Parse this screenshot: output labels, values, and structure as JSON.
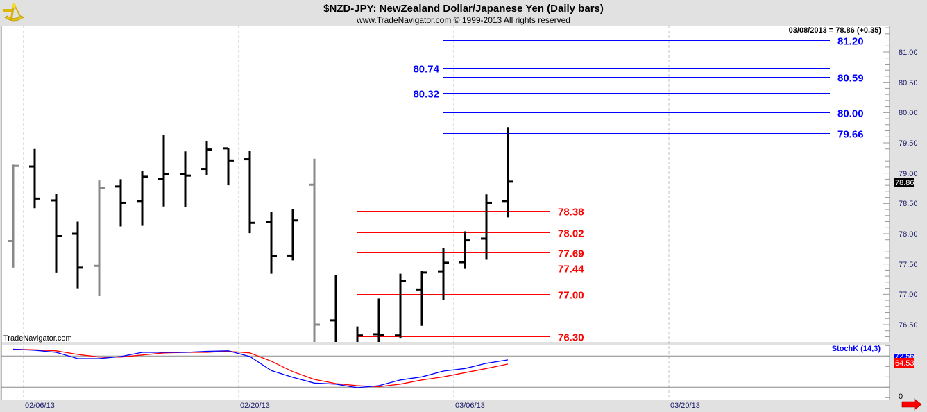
{
  "header": {
    "title": "$NZD-JPY:  NewZealand Dollar/Japanese Yen  (Daily bars)",
    "subtitle": "www.TradeNavigator.com © 1999-2013 All rights reserved",
    "last_quote": "03/08/2013 = 78.86 (+0.35)",
    "logo_icon": "sextant-icon"
  },
  "watermark": "TradeNavigator.com",
  "price_axis": {
    "labels": [
      "81.00",
      "80.50",
      "80.00",
      "79.50",
      "79.00",
      "78.50",
      "78.00",
      "77.50",
      "77.00",
      "76.50"
    ],
    "current_price_label": "78.86"
  },
  "date_axis": {
    "labels": [
      "02/06/13",
      "02/20/13",
      "03/06/13",
      "03/20/13"
    ]
  },
  "indicator": {
    "name": "StochK (14,3)",
    "k_value_label": "72.56",
    "d_value_label": "64.53",
    "zero_label": "0",
    "colors": {
      "k": "#0000ff",
      "d": "#ff0000"
    }
  },
  "resistance_levels": {
    "color": "#0000ff",
    "levels": [
      {
        "value": 81.2,
        "label": "81.20",
        "side": "right"
      },
      {
        "value": 80.74,
        "label": "80.74",
        "side": "left"
      },
      {
        "value": 80.59,
        "label": "80.59",
        "side": "right"
      },
      {
        "value": 80.32,
        "label": "80.32",
        "side": "left"
      },
      {
        "value": 80.0,
        "label": "80.00",
        "side": "right"
      },
      {
        "value": 79.66,
        "label": "79.66",
        "side": "right"
      }
    ]
  },
  "support_levels": {
    "color": "#ff0000",
    "levels": [
      {
        "value": 78.38,
        "label": "78.38"
      },
      {
        "value": 78.02,
        "label": "78.02"
      },
      {
        "value": 77.69,
        "label": "77.69"
      },
      {
        "value": 77.44,
        "label": "77.44"
      },
      {
        "value": 77.0,
        "label": "77.00"
      },
      {
        "value": 76.3,
        "label": "76.30"
      }
    ]
  },
  "chart_data": {
    "type": "ohlc",
    "title": "$NZD-JPY:  NewZealand Dollar/Japanese Yen  (Daily bars)",
    "ylim": [
      76.2,
      81.5
    ],
    "bars": [
      {
        "o": 77.88,
        "h": 79.14,
        "l": 77.44,
        "c": 79.12,
        "gray": true
      },
      {
        "o": 79.11,
        "h": 79.4,
        "l": 78.42,
        "c": 78.58
      },
      {
        "o": 78.55,
        "h": 78.66,
        "l": 77.36,
        "c": 77.96
      },
      {
        "o": 78.0,
        "h": 78.2,
        "l": 77.1,
        "c": 77.44
      },
      {
        "o": 77.47,
        "h": 78.88,
        "l": 76.97,
        "c": 78.76,
        "gray": true
      },
      {
        "o": 78.78,
        "h": 78.9,
        "l": 78.12,
        "c": 78.51
      },
      {
        "o": 78.54,
        "h": 79.03,
        "l": 78.13,
        "c": 78.94
      },
      {
        "o": 78.9,
        "h": 79.63,
        "l": 78.45,
        "c": 78.98
      },
      {
        "o": 78.98,
        "h": 79.36,
        "l": 78.44,
        "c": 78.96
      },
      {
        "o": 79.07,
        "h": 79.53,
        "l": 78.97,
        "c": 79.39
      },
      {
        "o": 79.41,
        "h": 79.41,
        "l": 78.8,
        "c": 79.21
      },
      {
        "o": 79.23,
        "h": 79.37,
        "l": 78.01,
        "c": 78.18
      },
      {
        "o": 78.19,
        "h": 78.36,
        "l": 77.34,
        "c": 77.63
      },
      {
        "o": 77.64,
        "h": 78.4,
        "l": 77.56,
        "c": 78.22
      },
      {
        "o": 78.81,
        "h": 79.24,
        "l": 75.9,
        "c": 76.5,
        "gray": true
      },
      {
        "o": 76.57,
        "h": 77.32,
        "l": 75.8,
        "c": 76.05
      },
      {
        "o": 76.1,
        "h": 76.47,
        "l": 75.9,
        "c": 76.32
      },
      {
        "o": 76.34,
        "h": 76.93,
        "l": 75.9,
        "c": 76.33
      },
      {
        "o": 76.32,
        "h": 77.34,
        "l": 76.27,
        "c": 77.22
      },
      {
        "o": 77.08,
        "h": 77.39,
        "l": 76.48,
        "c": 77.36
      },
      {
        "o": 77.38,
        "h": 77.76,
        "l": 76.9,
        "c": 77.52
      },
      {
        "o": 77.53,
        "h": 78.04,
        "l": 77.42,
        "c": 77.89
      },
      {
        "o": 77.92,
        "h": 78.65,
        "l": 77.57,
        "c": 78.51
      },
      {
        "o": 78.54,
        "h": 79.76,
        "l": 78.27,
        "c": 78.86
      }
    ],
    "stoch_k": [
      93,
      91,
      87,
      75,
      75,
      79,
      87,
      87,
      87,
      89,
      90,
      79,
      52,
      39,
      28,
      26,
      19,
      23,
      34,
      40,
      51,
      56,
      66,
      72.56
    ],
    "stoch_d": [
      93,
      92,
      90,
      83,
      78,
      78,
      82,
      86,
      87,
      87,
      89,
      86,
      70,
      50,
      35,
      27,
      23,
      21,
      26,
      34,
      40,
      48,
      56,
      64.53
    ],
    "stoch_ylim": [
      0,
      100
    ],
    "stoch_guides": [
      20,
      80
    ]
  }
}
